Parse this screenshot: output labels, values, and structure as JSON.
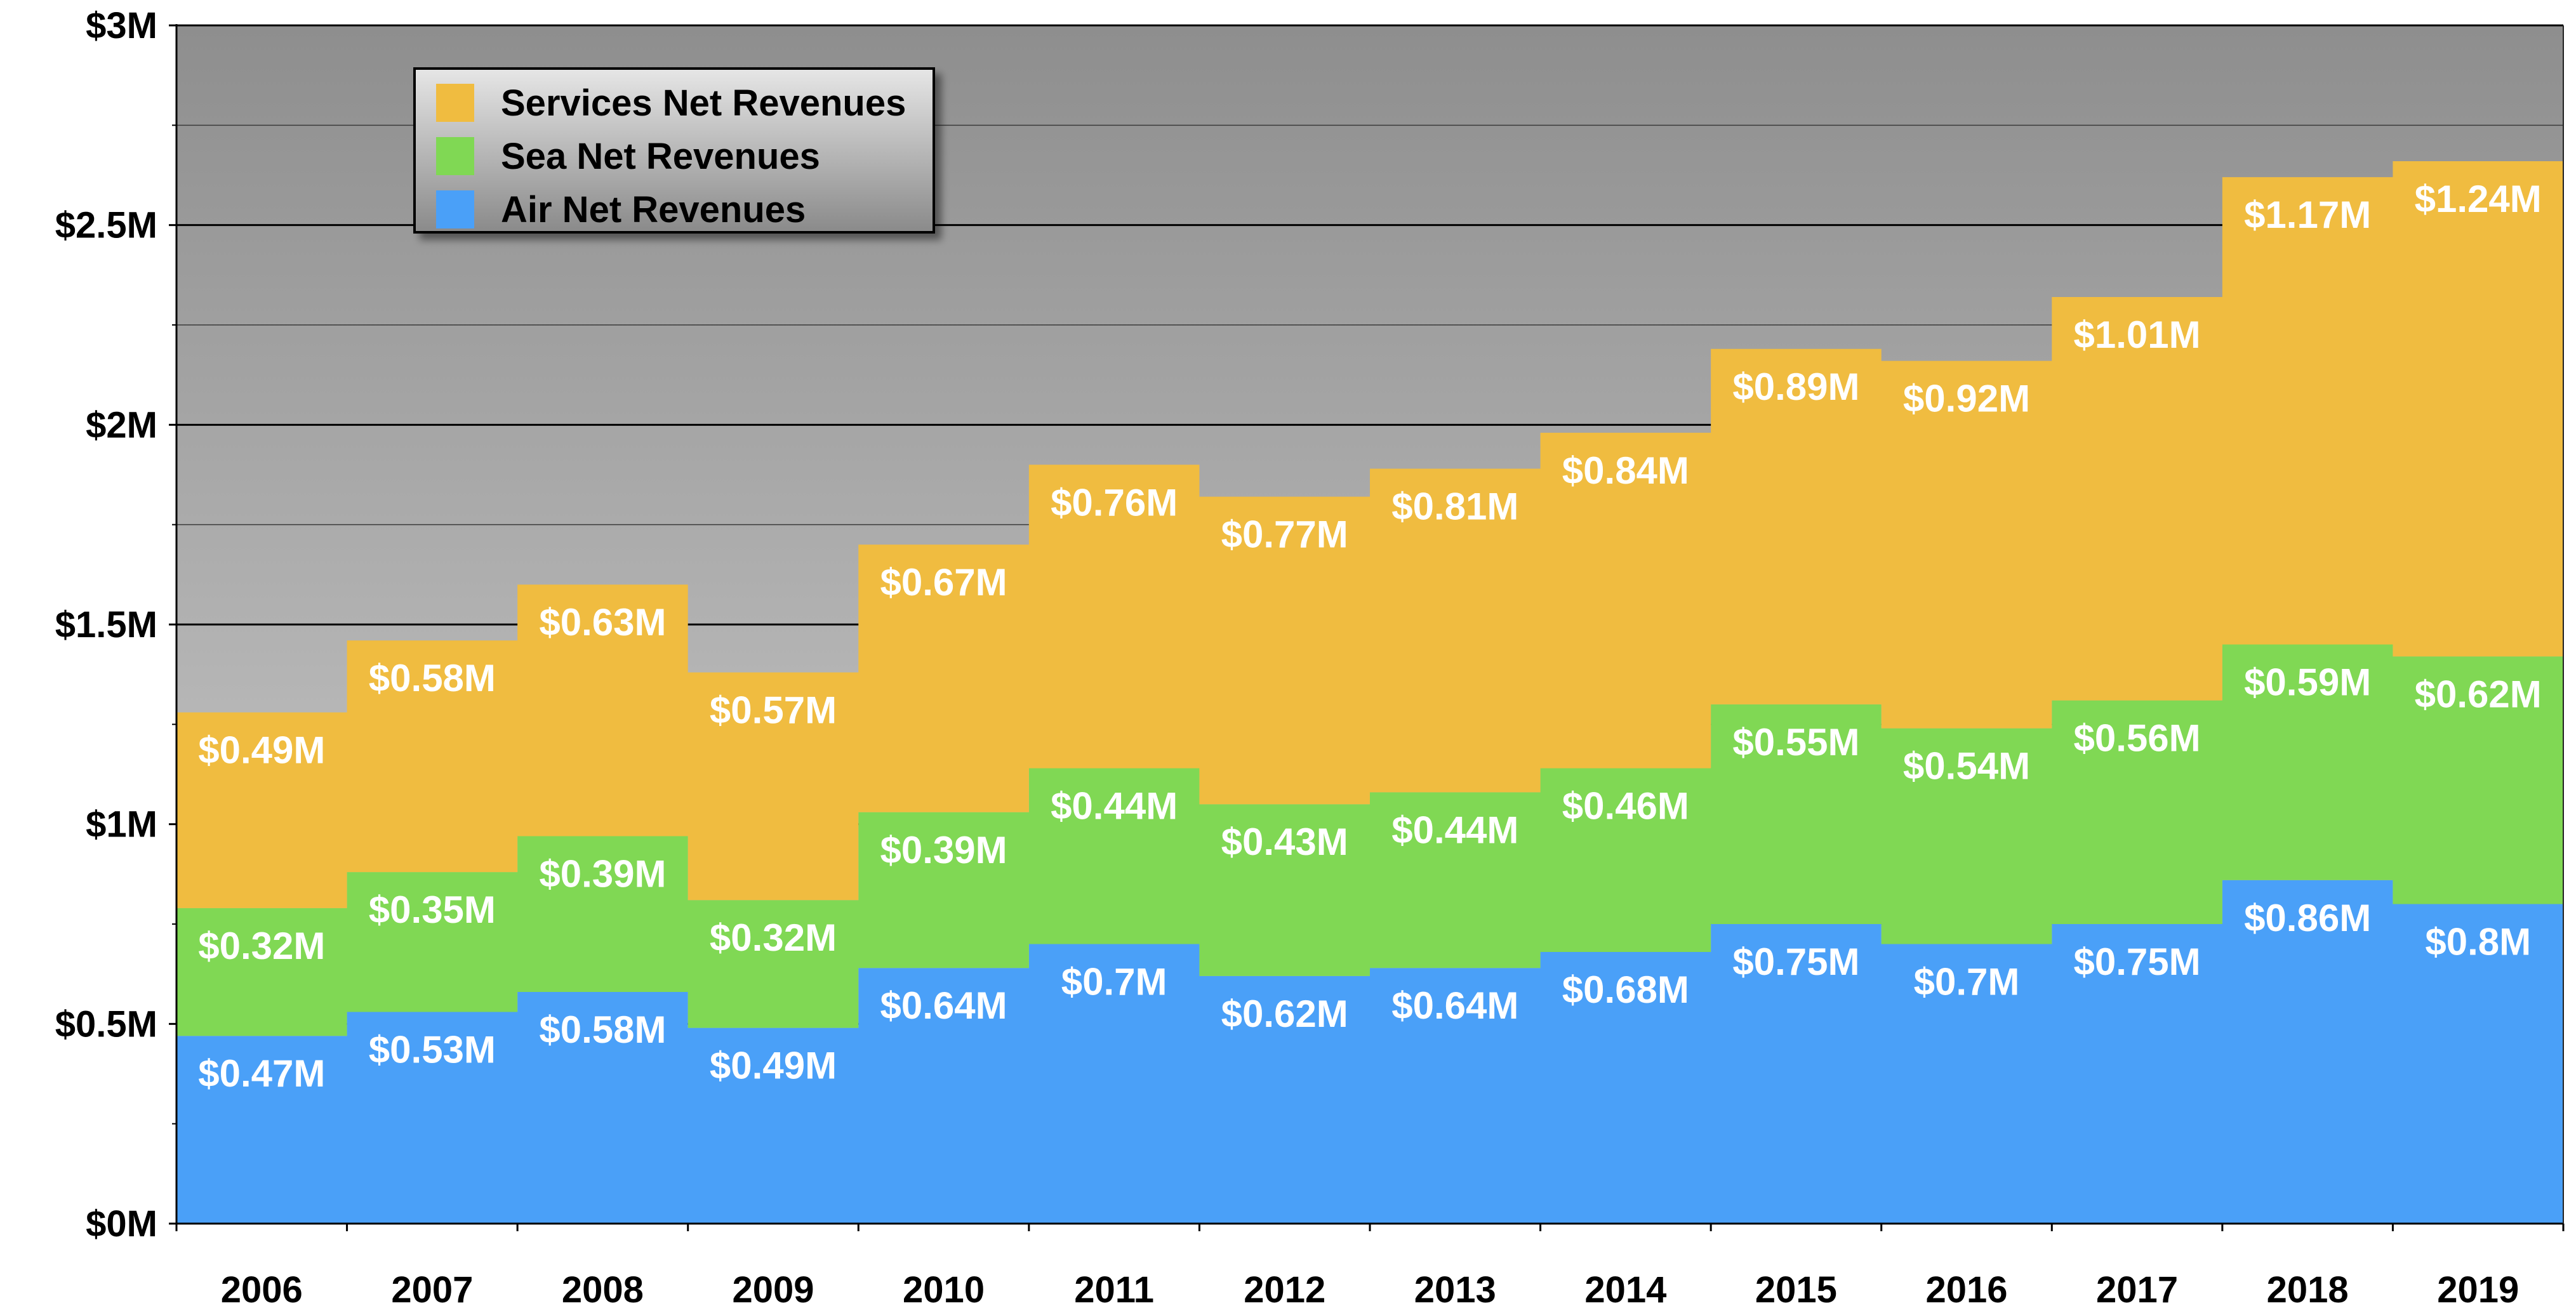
{
  "chart_data": {
    "type": "area",
    "step": true,
    "stacked": true,
    "categories": [
      "2006",
      "2007",
      "2008",
      "2009",
      "2010",
      "2011",
      "2012",
      "2013",
      "2014",
      "2015",
      "2016",
      "2017",
      "2018",
      "2019"
    ],
    "series": [
      {
        "name": "Air Net Revenues",
        "color": "#4aa0f8",
        "values": [
          0.47,
          0.53,
          0.58,
          0.49,
          0.64,
          0.7,
          0.62,
          0.64,
          0.68,
          0.75,
          0.7,
          0.75,
          0.86,
          0.8
        ],
        "labels": [
          "$0.47M",
          "$0.53M",
          "$0.58M",
          "$0.49M",
          "$0.64M",
          "$0.7M",
          "$0.62M",
          "$0.64M",
          "$0.68M",
          "$0.75M",
          "$0.7M",
          "$0.75M",
          "$0.86M",
          "$0.8M"
        ]
      },
      {
        "name": "Sea Net Revenues",
        "color": "#80d854",
        "values": [
          0.32,
          0.35,
          0.39,
          0.32,
          0.39,
          0.44,
          0.43,
          0.44,
          0.46,
          0.55,
          0.54,
          0.56,
          0.59,
          0.62
        ],
        "labels": [
          "$0.32M",
          "$0.35M",
          "$0.39M",
          "$0.32M",
          "$0.39M",
          "$0.44M",
          "$0.43M",
          "$0.44M",
          "$0.46M",
          "$0.55M",
          "$0.54M",
          "$0.56M",
          "$0.59M",
          "$0.62M"
        ]
      },
      {
        "name": "Services Net Revenues",
        "color": "#f0bc40",
        "values": [
          0.49,
          0.58,
          0.63,
          0.57,
          0.67,
          0.76,
          0.77,
          0.81,
          0.84,
          0.89,
          0.92,
          1.01,
          1.17,
          1.24
        ],
        "labels": [
          "$0.49M",
          "$0.58M",
          "$0.63M",
          "$0.57M",
          "$0.67M",
          "$0.76M",
          "$0.77M",
          "$0.81M",
          "$0.84M",
          "$0.89M",
          "$0.92M",
          "$1.01M",
          "$1.17M",
          "$1.24M"
        ]
      }
    ],
    "legend": [
      {
        "name": "Services Net Revenues",
        "color": "#f0bc40"
      },
      {
        "name": "Sea Net Revenues",
        "color": "#80d854"
      },
      {
        "name": "Air Net Revenues",
        "color": "#4aa0f8"
      }
    ],
    "legend_position": "top-left",
    "ylim": [
      0,
      3
    ],
    "y_ticks": [
      0,
      0.5,
      1,
      1.5,
      2,
      2.5,
      3
    ],
    "y_tick_labels": [
      "$0M",
      "$0.5M",
      "$1M",
      "$1.5M",
      "$2M",
      "$2.5M",
      "$3M"
    ],
    "title": "",
    "xlabel": "",
    "ylabel": "",
    "grid": true
  }
}
